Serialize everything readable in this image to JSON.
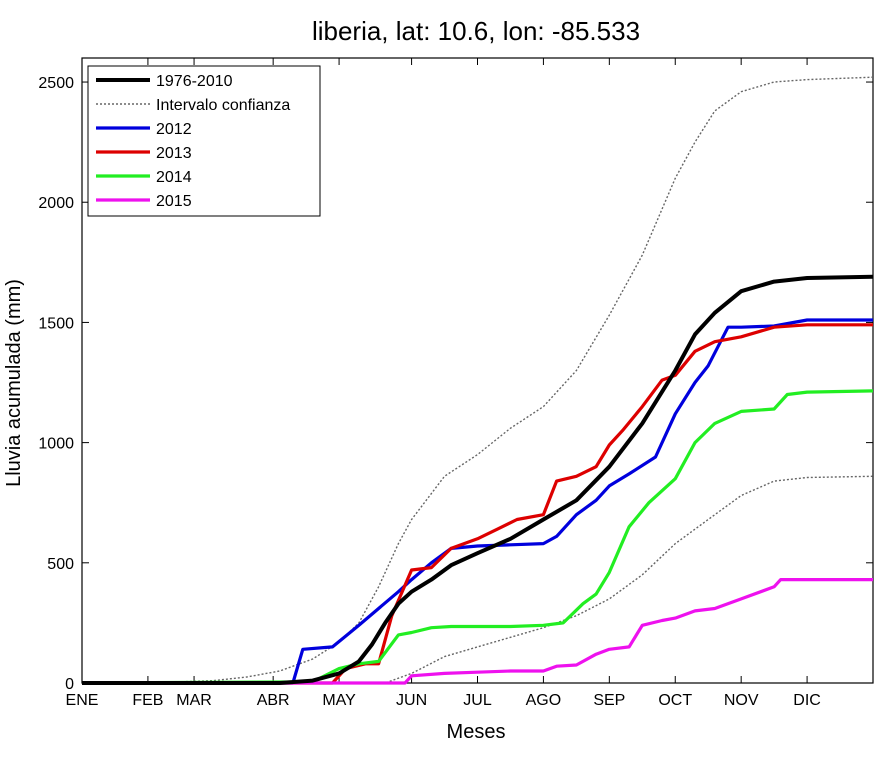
{
  "chart_data": {
    "type": "line",
    "title": "liberia, lat: 10.6, lon: -85.533",
    "xlabel": "Meses",
    "ylabel": "Lluvia acumulada (mm)",
    "x_ticks": [
      "ENE",
      "FEB",
      "MAR",
      "ABR",
      "MAY",
      "JUN",
      "JUL",
      "AGO",
      "SEP",
      "OCT",
      "NOV",
      "DIC"
    ],
    "x_tick_positions": [
      0,
      1,
      1.7,
      2.9,
      3.9,
      5,
      6,
      7,
      8,
      9,
      10,
      11
    ],
    "xlim": [
      0,
      12
    ],
    "ylim": [
      0,
      2600
    ],
    "y_ticks": [
      0,
      500,
      1000,
      1500,
      2000,
      2500
    ],
    "grid": false,
    "legend_position": "top-left",
    "series": [
      {
        "name": "1976-2010",
        "color": "#000000",
        "style": "solid",
        "x": [
          0,
          3.0,
          3.5,
          3.9,
          4.2,
          4.4,
          4.6,
          4.8,
          5.0,
          5.3,
          5.6,
          6.0,
          6.5,
          7.0,
          7.5,
          8.0,
          8.5,
          9.0,
          9.3,
          9.6,
          10.0,
          10.5,
          11.0,
          12.0
        ],
        "y": [
          0,
          0,
          10,
          40,
          90,
          160,
          250,
          330,
          380,
          430,
          490,
          540,
          600,
          680,
          760,
          900,
          1080,
          1300,
          1450,
          1540,
          1630,
          1670,
          1685,
          1690
        ]
      },
      {
        "name": "Intervalo confianza",
        "color": "#666666",
        "style": "dotted",
        "x": [
          0,
          1.5,
          2.0,
          2.5,
          3.0,
          3.5,
          3.9,
          4.2,
          4.5,
          4.8,
          5.0,
          5.5,
          6.0,
          6.5,
          7.0,
          7.5,
          8.0,
          8.5,
          9.0,
          9.3,
          9.6,
          10.0,
          10.5,
          11.0,
          12.0
        ],
        "y": [
          0,
          5,
          10,
          25,
          50,
          100,
          170,
          250,
          400,
          580,
          680,
          860,
          950,
          1060,
          1150,
          1300,
          1530,
          1780,
          2100,
          2250,
          2380,
          2460,
          2500,
          2510,
          2520
        ]
      },
      {
        "name": "",
        "color": "#666666",
        "style": "dotted",
        "x": [
          0,
          4.6,
          5.0,
          5.5,
          6.0,
          6.5,
          7.0,
          7.5,
          8.0,
          8.5,
          9.0,
          9.5,
          10.0,
          10.5,
          11.0,
          12.0
        ],
        "y": [
          0,
          0,
          40,
          110,
          150,
          190,
          230,
          280,
          350,
          450,
          580,
          680,
          780,
          840,
          855,
          860
        ]
      },
      {
        "name": "2012",
        "color": "#0000dd",
        "style": "solid",
        "x": [
          0,
          3.2,
          3.35,
          3.8,
          4.2,
          4.5,
          4.8,
          5.0,
          5.3,
          5.6,
          6.0,
          6.5,
          7.0,
          7.2,
          7.5,
          7.8,
          8.0,
          8.3,
          8.7,
          9.0,
          9.3,
          9.5,
          9.8,
          10.0,
          10.5,
          11.0,
          11.5,
          12.0
        ],
        "y": [
          0,
          0,
          140,
          150,
          240,
          310,
          380,
          430,
          500,
          560,
          570,
          575,
          580,
          610,
          700,
          760,
          820,
          870,
          940,
          1120,
          1250,
          1320,
          1480,
          1480,
          1485,
          1510,
          1510,
          1510
        ]
      },
      {
        "name": "2013",
        "color": "#dd0000",
        "style": "solid",
        "x": [
          0,
          3.8,
          4.0,
          4.3,
          4.5,
          4.7,
          5.0,
          5.3,
          5.6,
          6.0,
          6.3,
          6.6,
          7.0,
          7.2,
          7.5,
          7.8,
          8.0,
          8.2,
          8.5,
          8.8,
          9.0,
          9.3,
          9.6,
          10.0,
          10.5,
          11.0,
          11.5,
          12.0
        ],
        "y": [
          0,
          0,
          60,
          80,
          80,
          280,
          470,
          480,
          560,
          600,
          640,
          680,
          700,
          840,
          860,
          900,
          990,
          1050,
          1150,
          1260,
          1280,
          1380,
          1420,
          1440,
          1480,
          1490,
          1490,
          1490
        ]
      },
      {
        "name": "2014",
        "color": "#22ee22",
        "style": "solid",
        "x": [
          0,
          3.5,
          3.9,
          4.2,
          4.5,
          4.8,
          5.0,
          5.3,
          5.6,
          6.0,
          6.5,
          7.0,
          7.3,
          7.6,
          7.8,
          8.0,
          8.3,
          8.6,
          9.0,
          9.3,
          9.6,
          10.0,
          10.5,
          10.7,
          11.0,
          12.0
        ],
        "y": [
          0,
          5,
          60,
          80,
          90,
          200,
          210,
          230,
          235,
          235,
          235,
          240,
          250,
          330,
          370,
          460,
          650,
          750,
          850,
          1000,
          1080,
          1130,
          1140,
          1200,
          1210,
          1215
        ]
      },
      {
        "name": "2015",
        "color": "#ee11ee",
        "style": "solid",
        "x": [
          0,
          4.9,
          5.0,
          5.5,
          6.0,
          6.5,
          7.0,
          7.2,
          7.5,
          7.8,
          8.0,
          8.3,
          8.5,
          8.8,
          9.0,
          9.3,
          9.6,
          10.0,
          10.5,
          10.6,
          11.0,
          12.0
        ],
        "y": [
          0,
          0,
          30,
          40,
          45,
          50,
          50,
          70,
          75,
          120,
          140,
          150,
          240,
          260,
          270,
          300,
          310,
          350,
          400,
          430,
          430,
          430
        ]
      }
    ]
  }
}
